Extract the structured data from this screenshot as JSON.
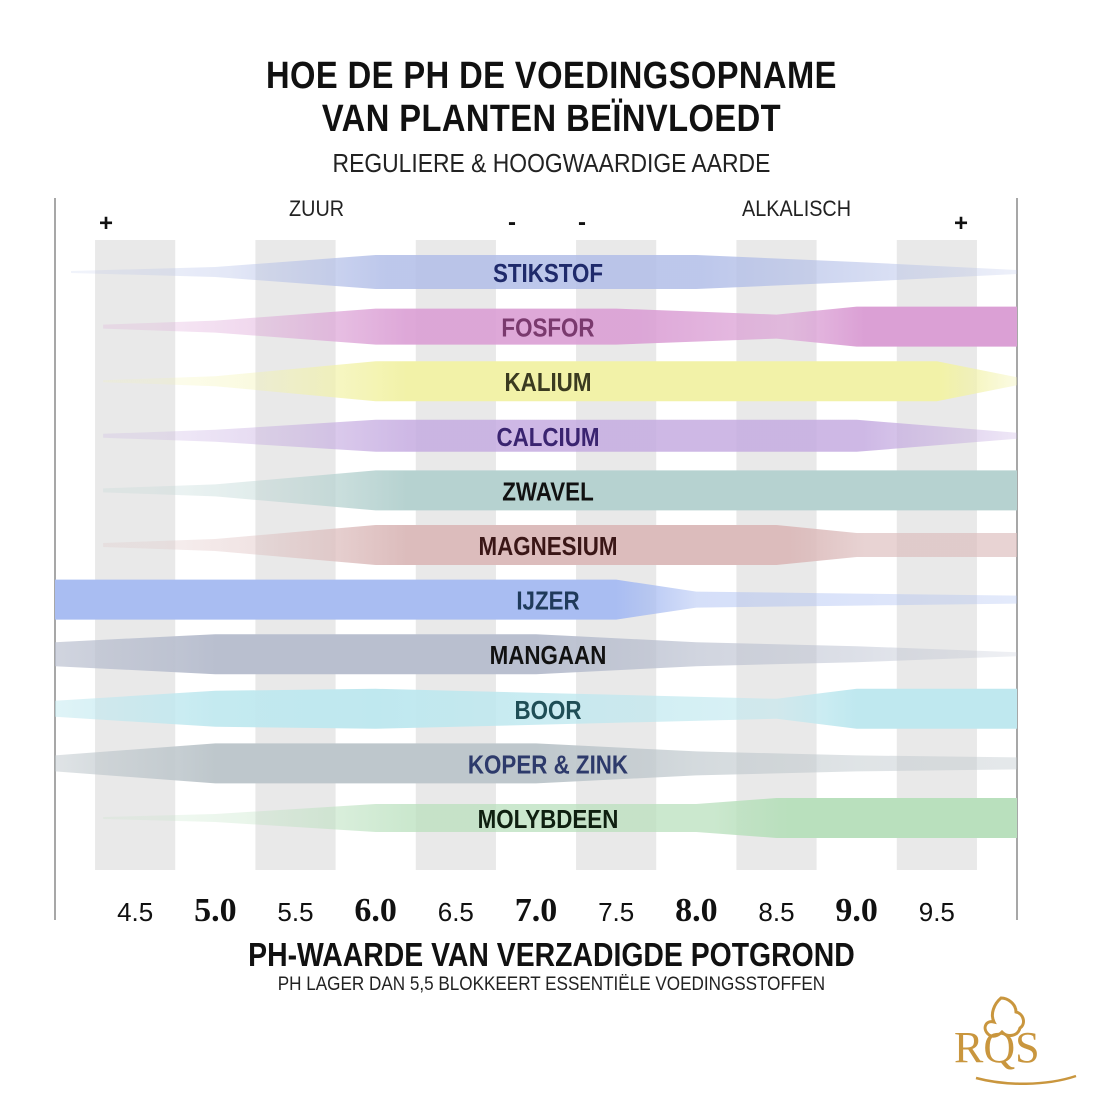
{
  "header": {
    "title_line1": "HOE DE PH DE VOEDINGSOPNAME",
    "title_line2": "VAN PLANTEN BEÏNVLOEDT",
    "subtitle": "REGULIERE & HOOGWAARDIGE AARDE"
  },
  "scale": {
    "left_word": "ZUUR",
    "right_word": "ALKALISCH",
    "plus": "+",
    "minus": "-"
  },
  "footer": {
    "xlabel": "PH-WAARDE VAN VERZADIGDE POTGROND",
    "note": "PH LAGER DAN 5,5 BLOKKEERT ESSENTIËLE VOEDINGSSTOFFEN"
  },
  "logo_text": "RQS",
  "colors": {
    "grid_band": "#e9e9e9",
    "logo_gold": "#c9963e"
  },
  "chart_data": {
    "type": "bar",
    "description_type": "nutrient availability bands by pH",
    "xlim": [
      4.0,
      10.0
    ],
    "tick_labels": [
      {
        "value": 4.5,
        "label": "4.5",
        "major": false
      },
      {
        "value": 5.0,
        "label": "5.0",
        "major": true
      },
      {
        "value": 5.5,
        "label": "5.5",
        "major": false
      },
      {
        "value": 6.0,
        "label": "6.0",
        "major": true
      },
      {
        "value": 6.5,
        "label": "6.5",
        "major": false
      },
      {
        "value": 7.0,
        "label": "7.0",
        "major": true
      },
      {
        "value": 7.5,
        "label": "7.5",
        "major": false
      },
      {
        "value": 8.0,
        "label": "8.0",
        "major": true
      },
      {
        "value": 8.5,
        "label": "8.5",
        "major": false
      },
      {
        "value": 9.0,
        "label": "9.0",
        "major": true
      },
      {
        "value": 9.5,
        "label": "9.5",
        "major": false
      }
    ],
    "grid_bands": [
      4.5,
      5.5,
      6.5,
      7.5,
      8.5,
      9.5
    ],
    "series": [
      {
        "name": "STIKSTOF",
        "color": "#b3bfe8",
        "label_color": "#1f2a6b",
        "availability": [
          [
            4.1,
            0.05
          ],
          [
            5.0,
            0.25
          ],
          [
            6.0,
            0.85
          ],
          [
            8.0,
            0.85
          ],
          [
            9.0,
            0.5
          ],
          [
            10.0,
            0.1
          ]
        ]
      },
      {
        "name": "FOSFOR",
        "color": "#dba0d5",
        "label_color": "#7a3a6e",
        "availability": [
          [
            4.3,
            0.1
          ],
          [
            5.0,
            0.3
          ],
          [
            6.0,
            0.9
          ],
          [
            7.5,
            0.9
          ],
          [
            8.5,
            0.6
          ],
          [
            9.0,
            1.0
          ],
          [
            10.0,
            1.0
          ]
        ]
      },
      {
        "name": "KALIUM",
        "color": "#f2f2a8",
        "label_color": "#3b3b20",
        "availability": [
          [
            4.3,
            0.05
          ],
          [
            5.0,
            0.25
          ],
          [
            6.0,
            1.0
          ],
          [
            9.5,
            1.0
          ],
          [
            10.0,
            0.2
          ]
        ]
      },
      {
        "name": "CALCIUM",
        "color": "#c4aae0",
        "label_color": "#3a2470",
        "availability": [
          [
            4.3,
            0.1
          ],
          [
            5.0,
            0.3
          ],
          [
            6.0,
            0.8
          ],
          [
            8.5,
            0.8
          ],
          [
            9.0,
            0.8
          ],
          [
            10.0,
            0.15
          ]
        ]
      },
      {
        "name": "ZWAVEL",
        "color": "#b6d2d0",
        "label_color": "#111111",
        "availability": [
          [
            4.3,
            0.1
          ],
          [
            5.0,
            0.3
          ],
          [
            6.0,
            1.0
          ],
          [
            10.0,
            1.0
          ]
        ]
      },
      {
        "name": "MAGNESIUM",
        "color": "#dcbcbc",
        "label_color": "#3a1616",
        "availability": [
          [
            4.3,
            0.1
          ],
          [
            5.0,
            0.3
          ],
          [
            6.0,
            1.0
          ],
          [
            8.5,
            1.0
          ],
          [
            9.0,
            0.6
          ],
          [
            10.0,
            0.6
          ]
        ]
      },
      {
        "name": "IJZER",
        "color": "#a9bdf2",
        "label_color": "#1f3a5a",
        "availability": [
          [
            4.0,
            1.0
          ],
          [
            7.5,
            1.0
          ],
          [
            8.0,
            0.4
          ],
          [
            9.0,
            0.3
          ],
          [
            10.0,
            0.2
          ]
        ]
      },
      {
        "name": "MANGAAN",
        "color": "#b9bfcf",
        "label_color": "#111111",
        "availability": [
          [
            4.0,
            0.6
          ],
          [
            5.0,
            1.0
          ],
          [
            7.0,
            1.0
          ],
          [
            8.0,
            0.6
          ],
          [
            9.0,
            0.4
          ],
          [
            10.0,
            0.1
          ]
        ]
      },
      {
        "name": "BOOR",
        "color": "#bfe8ef",
        "label_color": "#1f4e56",
        "availability": [
          [
            4.0,
            0.4
          ],
          [
            5.0,
            0.9
          ],
          [
            6.0,
            1.0
          ],
          [
            8.5,
            0.5
          ],
          [
            9.0,
            1.0
          ],
          [
            10.0,
            1.0
          ]
        ]
      },
      {
        "name": "KOPER & ZINK",
        "color": "#bec7cc",
        "label_color": "#2d3a6b",
        "availability": [
          [
            4.0,
            0.4
          ],
          [
            5.0,
            1.0
          ],
          [
            7.0,
            1.0
          ],
          [
            8.0,
            0.6
          ],
          [
            9.0,
            0.4
          ],
          [
            10.0,
            0.3
          ]
        ]
      },
      {
        "name": "MOLYBDEEN",
        "color": "#b9e0bd",
        "label_color": "#0f1f10",
        "availability": [
          [
            4.3,
            0.05
          ],
          [
            5.0,
            0.2
          ],
          [
            6.0,
            0.7
          ],
          [
            8.0,
            0.7
          ],
          [
            8.5,
            1.0
          ],
          [
            10.0,
            1.0
          ]
        ]
      }
    ]
  }
}
